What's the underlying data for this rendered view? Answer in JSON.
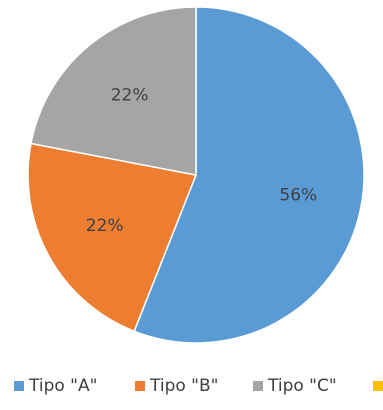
{
  "chart_data": {
    "type": "pie",
    "title": "",
    "categories": [
      "Tipo \"A\"",
      "Tipo \"B\"",
      "Tipo \"C\"",
      ""
    ],
    "values": [
      56,
      22,
      22,
      0
    ],
    "labels": [
      "56%",
      "22%",
      "22%"
    ],
    "colors": [
      "#5b9bd5",
      "#ed7d31",
      "#a5a5a5",
      "#ffc000"
    ],
    "legend_position": "bottom",
    "start_angle": "top, clockwise"
  }
}
